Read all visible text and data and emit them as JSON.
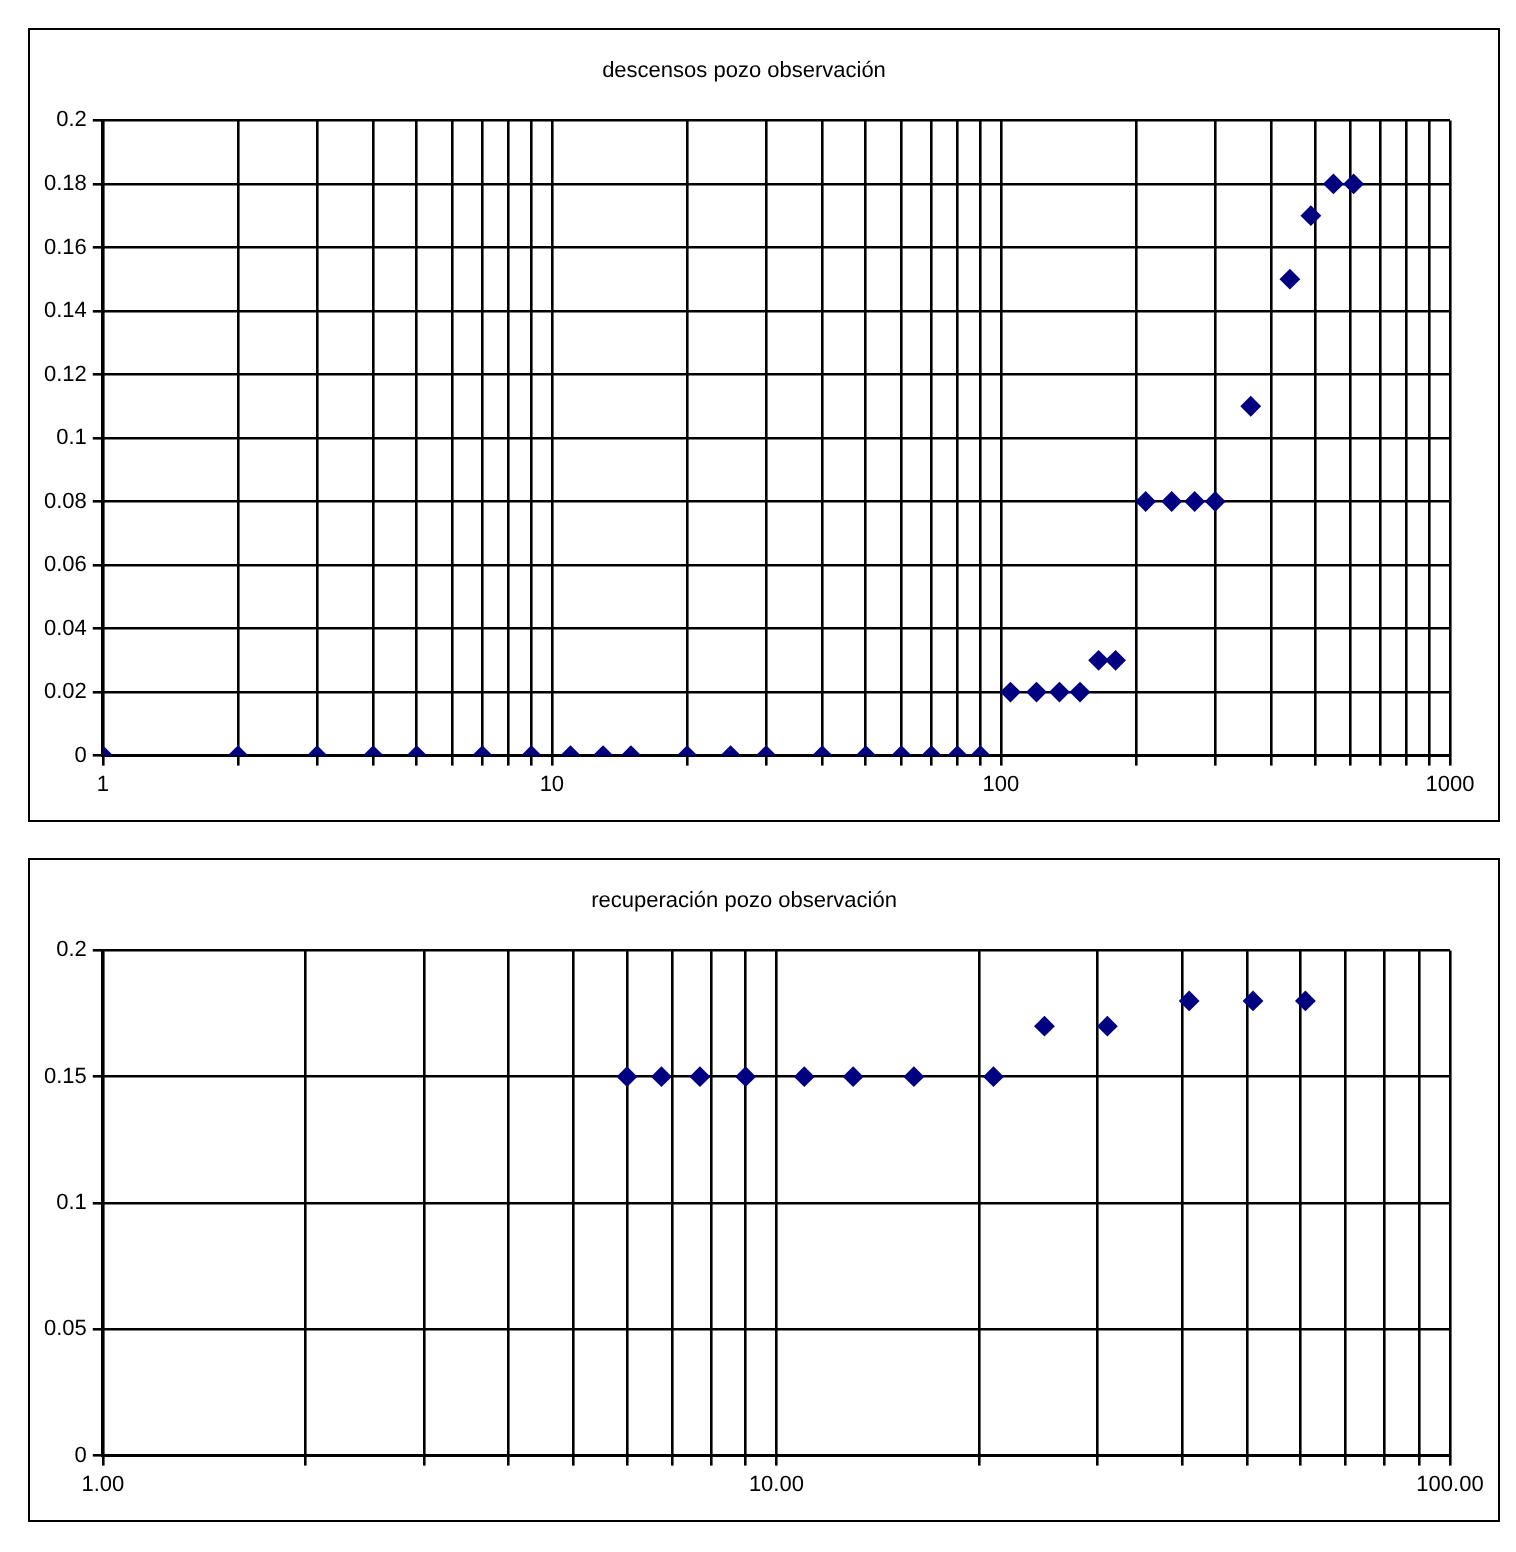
{
  "chart_data": [
    {
      "type": "scatter",
      "title": "descensos pozo observación",
      "log": "x",
      "grid": true,
      "marker": "diamond",
      "legend": false,
      "series": [
        {
          "color": "#000080",
          "x": [
            1,
            2,
            3,
            4,
            5,
            7,
            9,
            11,
            13,
            15,
            20,
            25,
            30,
            40,
            50,
            60,
            70,
            80,
            90,
            105,
            120,
            135,
            150,
            165,
            180,
            210,
            240,
            270,
            300,
            360,
            440,
            490,
            550,
            610
          ],
          "values": [
            0,
            0,
            0,
            0,
            0,
            0,
            0,
            0,
            0,
            0,
            0,
            0,
            0,
            0,
            0,
            0,
            0,
            0,
            0,
            0.02,
            0.02,
            0.02,
            0.02,
            0.03,
            0.03,
            0.08,
            0.08,
            0.08,
            0.08,
            0.11,
            0.15,
            0.17,
            0.18,
            0.18
          ]
        }
      ],
      "xlim": [
        1,
        1000
      ],
      "xticks": [
        1,
        {
          "value": 2,
          "label": null
        },
        {
          "value": 3,
          "label": null
        },
        {
          "value": 4,
          "label": null
        },
        {
          "value": 5,
          "label": null
        },
        {
          "value": 6,
          "label": null
        },
        {
          "value": 7,
          "label": null
        },
        {
          "value": 8,
          "label": null
        },
        {
          "value": 9,
          "label": null
        },
        10,
        {
          "value": 20,
          "label": null
        },
        {
          "value": 30,
          "label": null
        },
        {
          "value": 40,
          "label": null
        },
        {
          "value": 50,
          "label": null
        },
        {
          "value": 60,
          "label": null
        },
        {
          "value": 70,
          "label": null
        },
        {
          "value": 80,
          "label": null
        },
        {
          "value": 90,
          "label": null
        },
        100,
        {
          "value": 200,
          "label": null
        },
        {
          "value": 300,
          "label": null
        },
        {
          "value": 400,
          "label": null
        },
        {
          "value": 500,
          "label": null
        },
        {
          "value": 600,
          "label": null
        },
        {
          "value": 700,
          "label": null
        },
        {
          "value": 800,
          "label": null
        },
        {
          "value": 900,
          "label": null
        },
        1000
      ],
      "ylim": [
        0,
        0.2
      ],
      "yticks": [
        0,
        0.02,
        0.04,
        0.06,
        0.08,
        0.1,
        0.12,
        0.14,
        0.16,
        0.18,
        0.2
      ]
    },
    {
      "type": "scatter",
      "title": "recuperación pozo observación",
      "log": "x",
      "grid": true,
      "marker": "diamond",
      "legend": false,
      "series": [
        {
          "color": "#000080",
          "x": [
            6,
            6.75,
            7.7,
            9,
            11,
            13,
            16,
            21,
            25,
            31,
            41,
            51,
            61
          ],
          "values": [
            0.15,
            0.15,
            0.15,
            0.15,
            0.15,
            0.15,
            0.15,
            0.15,
            0.17,
            0.17,
            0.18,
            0.18,
            0.18
          ]
        }
      ],
      "xlim": [
        1,
        100
      ],
      "xticks": [
        {
          "value": 1,
          "label": "1.00"
        },
        {
          "value": 2,
          "label": null
        },
        {
          "value": 3,
          "label": null
        },
        {
          "value": 4,
          "label": null
        },
        {
          "value": 5,
          "label": null
        },
        {
          "value": 6,
          "label": null
        },
        {
          "value": 7,
          "label": null
        },
        {
          "value": 8,
          "label": null
        },
        {
          "value": 9,
          "label": null
        },
        {
          "value": 10,
          "label": "10.00"
        },
        {
          "value": 20,
          "label": null
        },
        {
          "value": 30,
          "label": null
        },
        {
          "value": 40,
          "label": null
        },
        {
          "value": 50,
          "label": null
        },
        {
          "value": 60,
          "label": null
        },
        {
          "value": 70,
          "label": null
        },
        {
          "value": 80,
          "label": null
        },
        {
          "value": 90,
          "label": null
        },
        {
          "value": 100,
          "label": "100.00"
        }
      ],
      "ylim": [
        0,
        0.2
      ],
      "yticks": [
        0,
        0.05,
        0.1,
        0.15,
        0.2
      ]
    }
  ]
}
